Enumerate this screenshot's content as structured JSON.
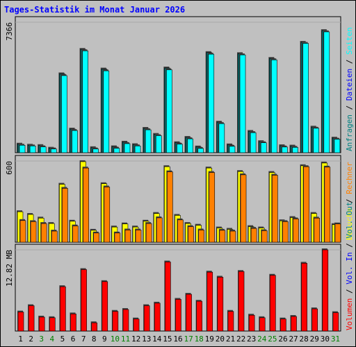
{
  "chart_data": {
    "type": "bar",
    "title": "Tages-Statistik im Monat Januar 2026",
    "categories": [
      "1",
      "2",
      "3",
      "4",
      "5",
      "6",
      "7",
      "8",
      "9",
      "10",
      "11",
      "12",
      "13",
      "14",
      "15",
      "16",
      "17",
      "18",
      "19",
      "20",
      "21",
      "22",
      "23",
      "24",
      "25",
      "26",
      "27",
      "28",
      "29",
      "30",
      "31"
    ],
    "weekend_categories": [
      "3",
      "4",
      "10",
      "11",
      "17",
      "18",
      "24",
      "25",
      "31"
    ],
    "colors": {
      "anfragen": "#006666",
      "dateien": "#0000ff",
      "seiten": "#00ffff",
      "besuche": "#ffff00",
      "rechner": "#ff8000",
      "volumen": "#ff0000",
      "volumen_label": "#ff0000",
      "vol_in_label": "#0000ff",
      "vol_out_label": "#008080",
      "title": "#0000ff",
      "weekend_label": "#008000",
      "panel_bg": "#c0c0c0"
    },
    "panels": [
      {
        "scale_label": "7366",
        "ymax": 7366,
        "legend": [
          {
            "text": "Anfragen",
            "color": "#008080"
          },
          {
            "text": "Dateien",
            "color": "#0000ff"
          },
          {
            "text": "Seiten",
            "color": "#00ffff"
          }
        ],
        "series": [
          {
            "name": "Anfragen",
            "values": [
              480,
              420,
              400,
              250,
              4450,
              1330,
              5830,
              280,
              4720,
              330,
              590,
              450,
              1370,
              1030,
              4780,
              560,
              860,
              320,
              5650,
              1720,
              440,
              5590,
              1200,
              620,
              5320,
              390,
              370,
              6230,
              1440,
              6890,
              820
            ]
          },
          {
            "name": "Dateien",
            "values": [
              420,
              380,
              330,
              210,
              4350,
              1250,
              5750,
              210,
              4620,
              250,
              510,
              380,
              1290,
              960,
              4680,
              480,
              780,
              240,
              5560,
              1640,
              360,
              5520,
              1130,
              560,
              5240,
              320,
              300,
              6170,
              1380,
              6820,
              760
            ]
          }
        ]
      },
      {
        "scale_label": "600",
        "ymax": 600,
        "legend": [
          {
            "text": "Besuche",
            "color": "#ffff00"
          },
          {
            "text": "Rechner",
            "color": "#ff8000"
          }
        ],
        "series": [
          {
            "name": "Besuche",
            "values": [
              225,
              205,
              178,
              138,
              428,
              155,
              595,
              88,
              432,
              112,
              135,
              112,
              155,
              212,
              558,
              198,
              138,
              125,
              548,
              105,
              95,
              522,
              115,
              105,
              515,
              158,
              182,
              565,
              212,
              585,
              130
            ]
          },
          {
            "name": "Rechner",
            "values": [
              160,
              152,
              138,
              82,
              398,
              120,
              548,
              68,
              408,
              68,
              90,
              90,
              138,
              180,
              520,
              165,
              115,
              90,
              515,
              88,
              82,
              498,
              102,
              85,
              495,
              152,
              172,
              558,
              178,
              555,
              135
            ]
          }
        ]
      },
      {
        "scale_label": "12.82 MB",
        "ymax": 12.82,
        "legend": [
          {
            "text": "Volumen",
            "color": "#ff0000"
          },
          {
            "text": "Vol. In",
            "color": "#0000ff"
          },
          {
            "text": "Vol. Out",
            "color": "#008080"
          }
        ],
        "series": [
          {
            "name": "Volumen",
            "values": [
              3.0,
              4.0,
              2.2,
              2.1,
              7.0,
              2.7,
              9.7,
              1.3,
              7.8,
              3.1,
              3.4,
              1.9,
              4.0,
              4.4,
              10.9,
              5.0,
              5.8,
              4.7,
              9.3,
              8.5,
              3.1,
              9.4,
              2.5,
              2.1,
              8.8,
              1.9,
              2.3,
              10.7,
              3.5,
              12.82,
              2.9
            ]
          }
        ]
      }
    ]
  }
}
